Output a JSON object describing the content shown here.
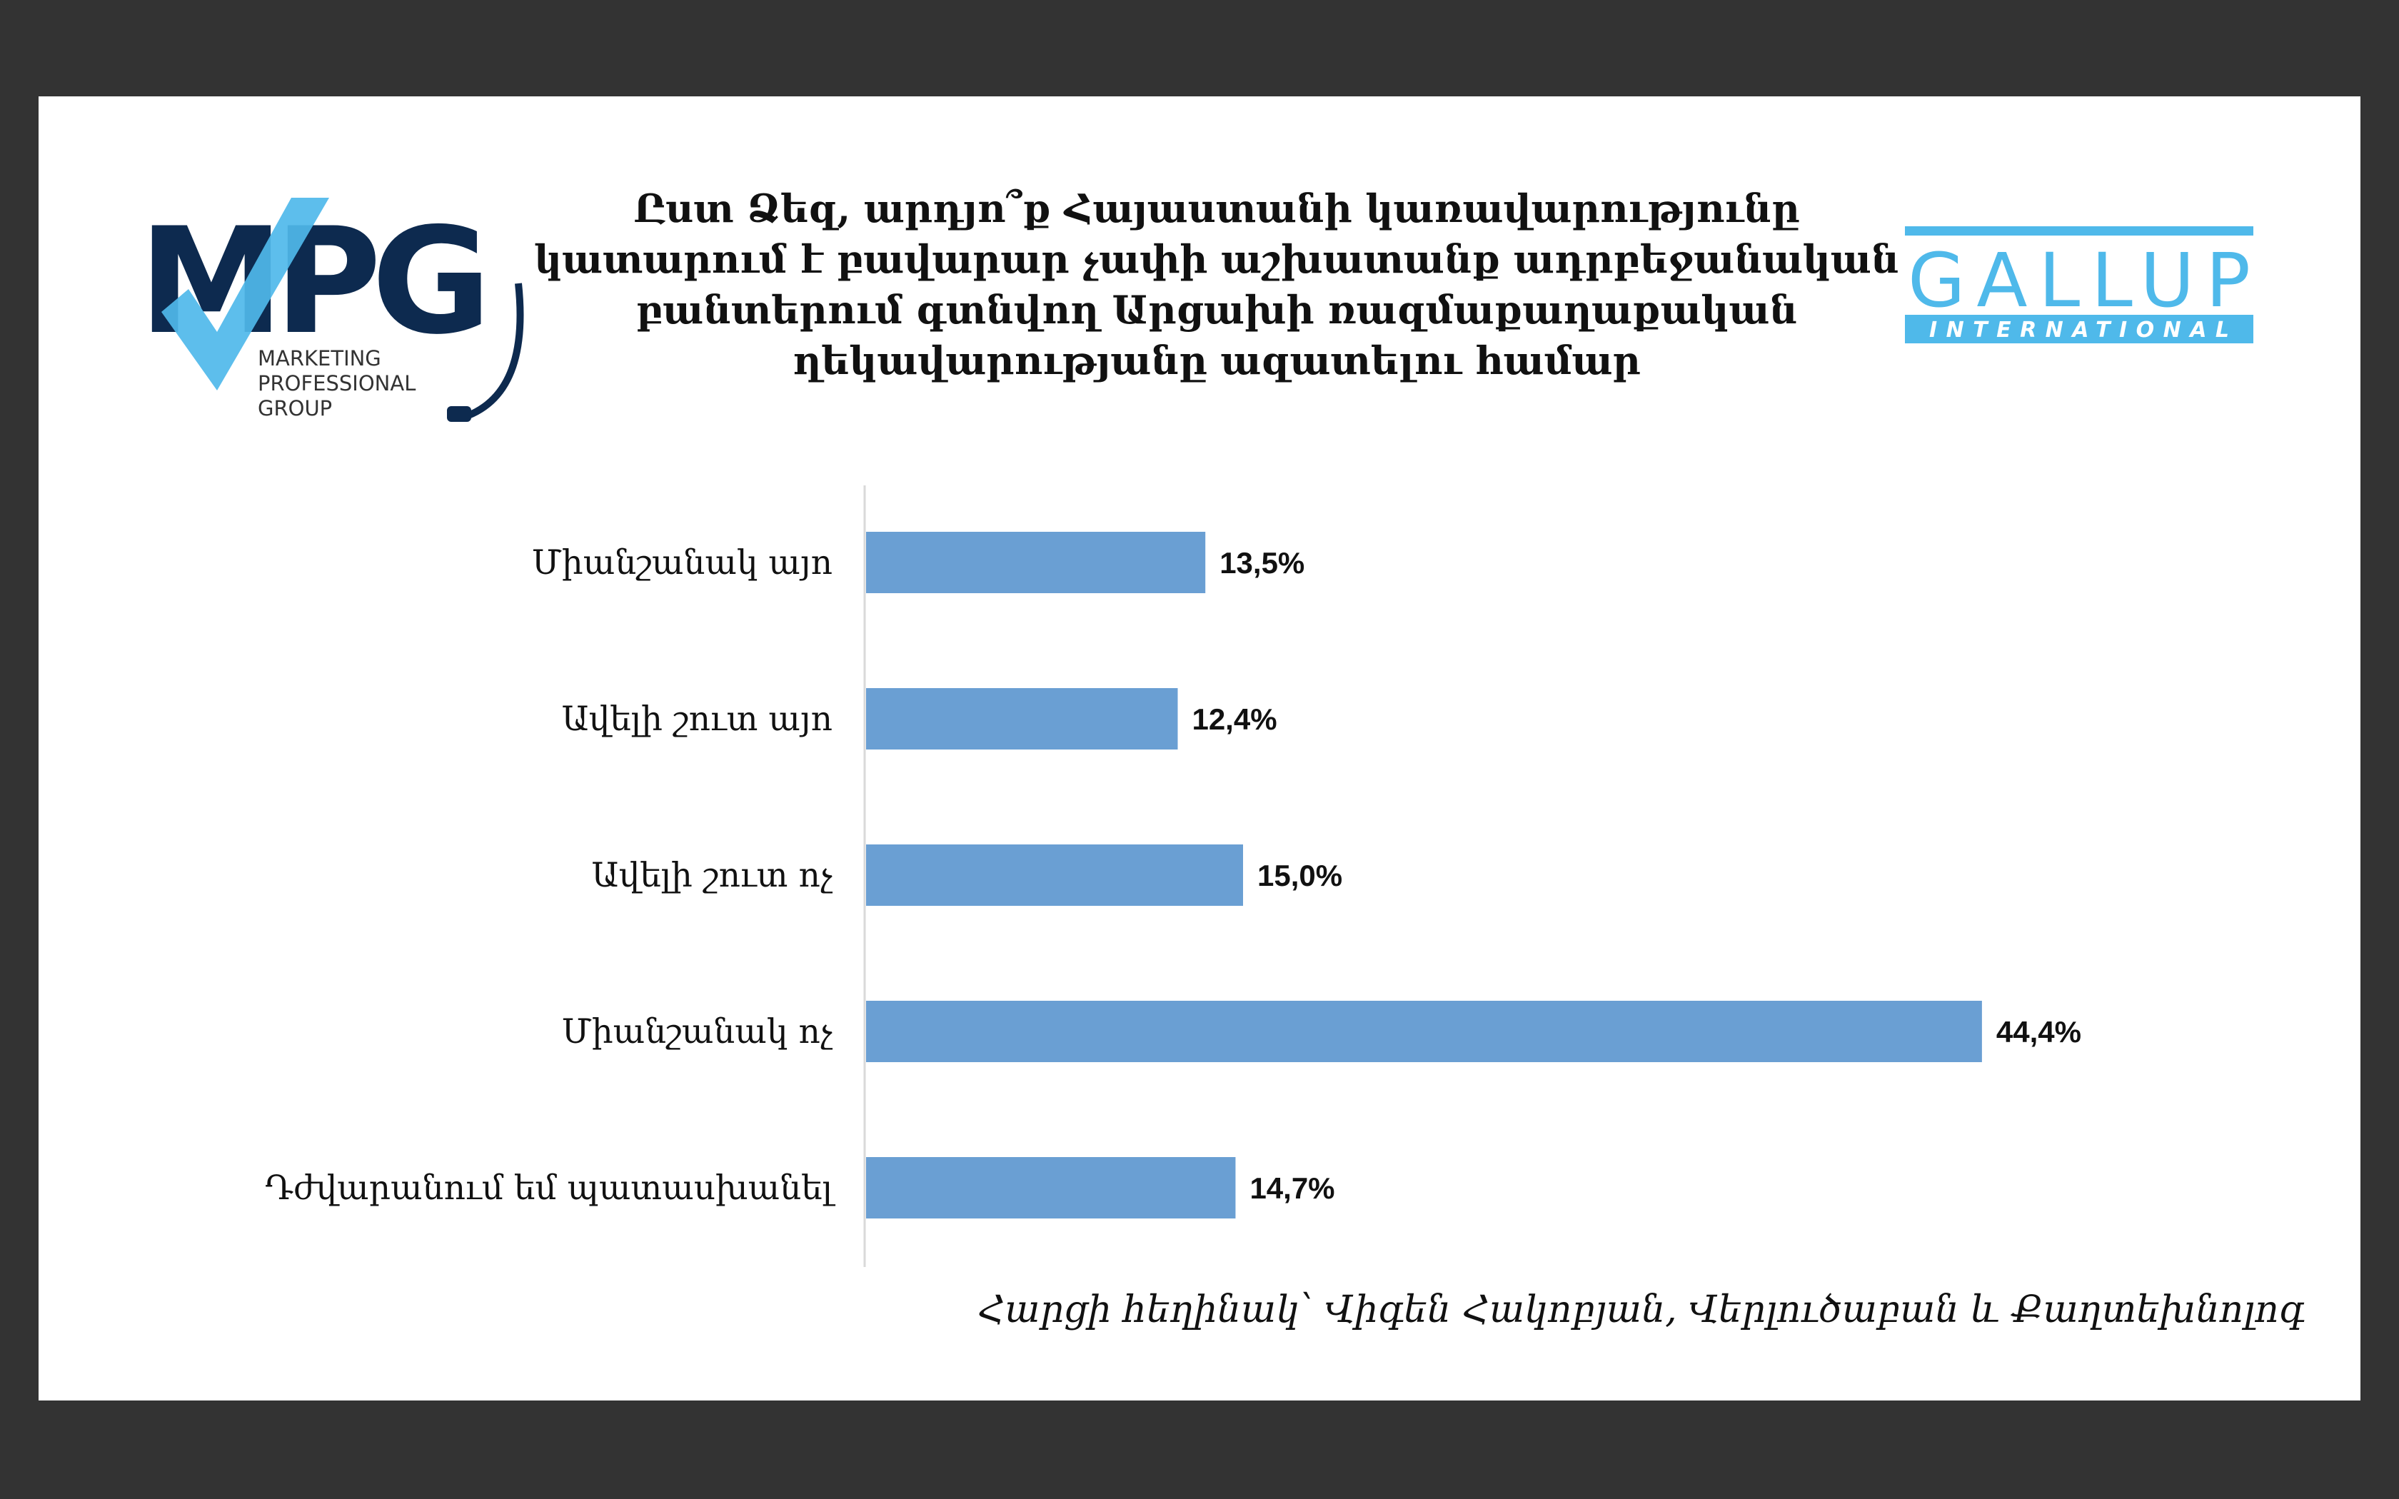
{
  "logos": {
    "mpg": {
      "mark": "MPG",
      "lines": [
        "MARKETING",
        "PROFESSIONAL",
        "GROUP"
      ],
      "colors": {
        "navy": "#0d2a4f",
        "blue": "#4fb9ea"
      }
    },
    "gallup": {
      "mark": "GALLUP",
      "sub": "INTERNATIONAL",
      "color": "#4fb9ea"
    }
  },
  "footnote": "Հարցի հեղինակ՝ Վիգեն Հակոբյան, Վերլուծաբան և Քաղտեխնոլոգ",
  "chart_data": {
    "type": "bar",
    "orientation": "horizontal",
    "title_lines": [
      "Ըստ Ձեզ, արդյո՞ք Հայաստանի կառավարությունը",
      "կատարում է բավարար չափի աշխատանք ադրբեջանական",
      "բանտերում գտնվող Արցախի ռազմաքաղաքական",
      "ղեկավարությանը ազատելու համար"
    ],
    "categories": [
      "Միանշանակ այո",
      "Ավելի շուտ այո",
      "Ավելի շուտ ոչ",
      "Միանշանակ ոչ",
      "Դժվարանում եմ պատասխանել"
    ],
    "values": [
      13.5,
      12.4,
      15.0,
      44.4,
      14.7
    ],
    "value_labels": [
      "13,5%",
      "12,4%",
      "15,0%",
      "44,4%",
      "14,7%"
    ],
    "xlim": [
      0,
      50
    ],
    "bar_color": "#6a9fd3",
    "grid": false,
    "legend": "none"
  }
}
